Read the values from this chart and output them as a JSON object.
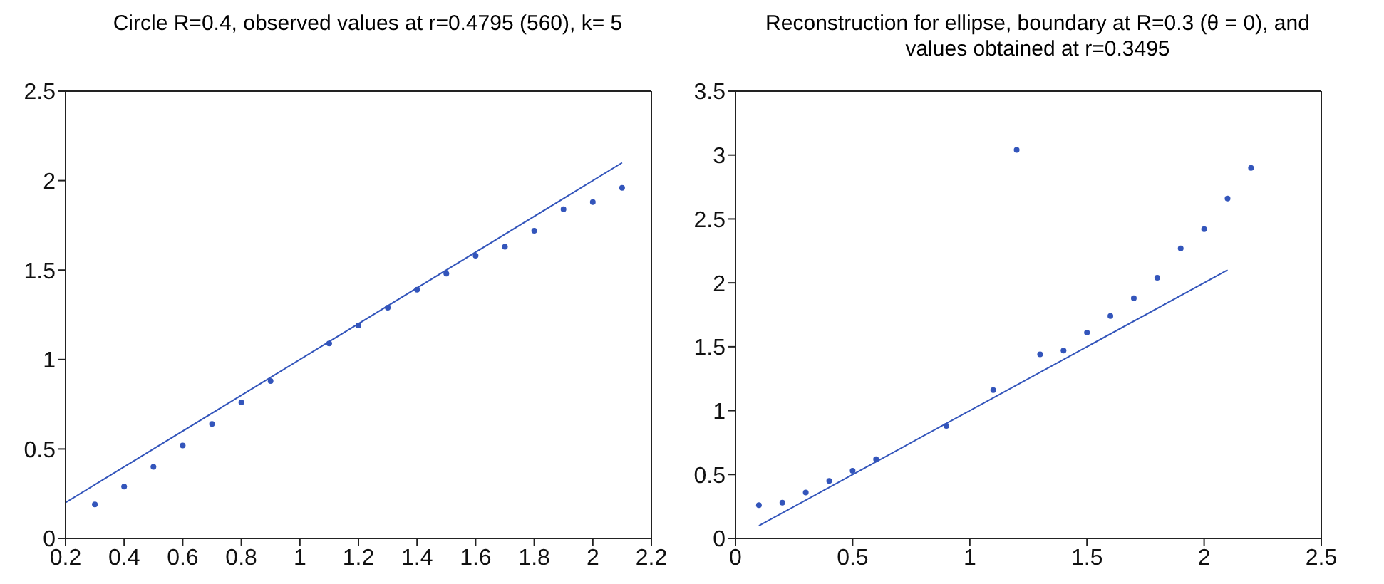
{
  "chart_data": [
    {
      "type": "scatter",
      "title": "Circle R=0.4, observed values at r=0.4795 (560), k= 5",
      "xlim": [
        0.2,
        2.2
      ],
      "xticks": [
        0.2,
        0.4,
        0.6,
        0.8,
        1,
        1.2,
        1.4,
        1.6,
        1.8,
        2,
        2.2
      ],
      "ylim": [
        0,
        2.5
      ],
      "yticks": [
        0,
        0.5,
        1,
        1.5,
        2,
        2.5
      ],
      "legend": false,
      "series": [
        {
          "type": "scatter",
          "color": "#3355bb",
          "marker": "circle",
          "x": [
            0.3,
            0.4,
            0.5,
            0.6,
            0.7,
            0.8,
            0.9,
            1.1,
            1.2,
            1.3,
            1.4,
            1.5,
            1.6,
            1.7,
            1.8,
            1.9,
            2.0,
            2.1
          ],
          "values": [
            0.19,
            0.29,
            0.4,
            0.52,
            0.64,
            0.76,
            0.88,
            1.09,
            1.19,
            1.29,
            1.39,
            1.48,
            1.58,
            1.63,
            1.72,
            1.84,
            1.88,
            1.96
          ]
        },
        {
          "type": "line",
          "color": "#3355bb",
          "marker": "none",
          "x": [
            0.2,
            2.1
          ],
          "values": [
            0.2,
            2.1
          ]
        }
      ]
    },
    {
      "type": "scatter",
      "title": "Reconstruction for ellipse, boundary at R=0.3 (θ = 0), and values obtained at r=0.3495",
      "xlim": [
        0,
        2.5
      ],
      "xticks": [
        0,
        0.5,
        1,
        1.5,
        2,
        2.5
      ],
      "ylim": [
        0,
        3.5
      ],
      "yticks": [
        0,
        0.5,
        1,
        1.5,
        2,
        2.5,
        3,
        3.5
      ],
      "legend": false,
      "series": [
        {
          "type": "scatter",
          "color": "#3355bb",
          "marker": "circle",
          "x": [
            0.1,
            0.2,
            0.3,
            0.4,
            0.5,
            0.6,
            0.9,
            1.1,
            1.2,
            1.3,
            1.4,
            1.5,
            1.6,
            1.7,
            1.8,
            1.9,
            2.0,
            2.1,
            2.2
          ],
          "values": [
            0.26,
            0.28,
            0.36,
            0.45,
            0.53,
            0.62,
            0.88,
            1.16,
            3.04,
            1.44,
            1.47,
            1.61,
            1.74,
            1.88,
            2.04,
            2.27,
            2.42,
            2.66,
            2.9
          ]
        },
        {
          "type": "line",
          "color": "#3355bb",
          "marker": "none",
          "x": [
            0.1,
            2.1
          ],
          "values": [
            0.1,
            2.1
          ]
        }
      ]
    }
  ]
}
